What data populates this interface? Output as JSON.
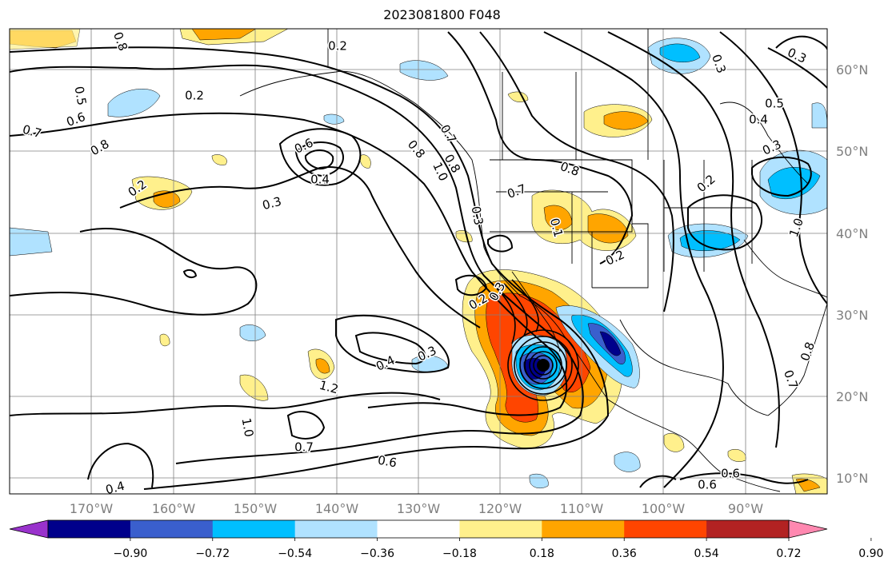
{
  "title": "2023081800 F048",
  "map": {
    "lon_range": [
      -190,
      -90
    ],
    "lat_range": [
      8,
      65
    ],
    "lon_ticks": [
      "170°W",
      "160°W",
      "150°W",
      "140°W",
      "130°W",
      "120°W",
      "110°W",
      "100°W",
      "90°W"
    ],
    "lat_ticks": [
      "10°N",
      "20°N",
      "30°N",
      "40°N",
      "50°N",
      "60°N"
    ],
    "storm_center": {
      "lon": -114.5,
      "lat": 23.5
    }
  },
  "colorbar": {
    "colors": [
      "#9932cc",
      "#00008b",
      "#3a5fcd",
      "#00bfff",
      "#b0e2ff",
      "#ffffff",
      "#fff08c",
      "#ffa500",
      "#ff4500",
      "#b22222",
      "#ff88b0"
    ],
    "tick_labels": [
      "−0.90",
      "−0.72",
      "−0.54",
      "−0.36",
      "−0.18",
      "0.18",
      "0.36",
      "0.54",
      "0.72",
      "0.90"
    ]
  },
  "contour_labels": [
    "0.2",
    "0.8",
    "0.5",
    "0.6",
    "0.7",
    "0.8",
    "0.6",
    "0.7",
    "0.8",
    "1.0",
    "0.7",
    "0.8",
    "0.3",
    "0.8",
    "0.7",
    "0.1",
    "0.2",
    "0.2",
    "0.3",
    "0.4",
    "0.3",
    "1.2",
    "1.0",
    "0.7",
    "0.6",
    "0.4",
    "0.3",
    "0.4",
    "0.2",
    "0.2",
    "0.3",
    "0.2",
    "1.0",
    "0.8",
    "0.7",
    "0.6",
    "0.6",
    "0.3",
    "0.5",
    "0.4",
    "0.3"
  ],
  "colors": {
    "contour": "#000000",
    "grid": "#808080",
    "axis_text": "#7f7f7f"
  }
}
